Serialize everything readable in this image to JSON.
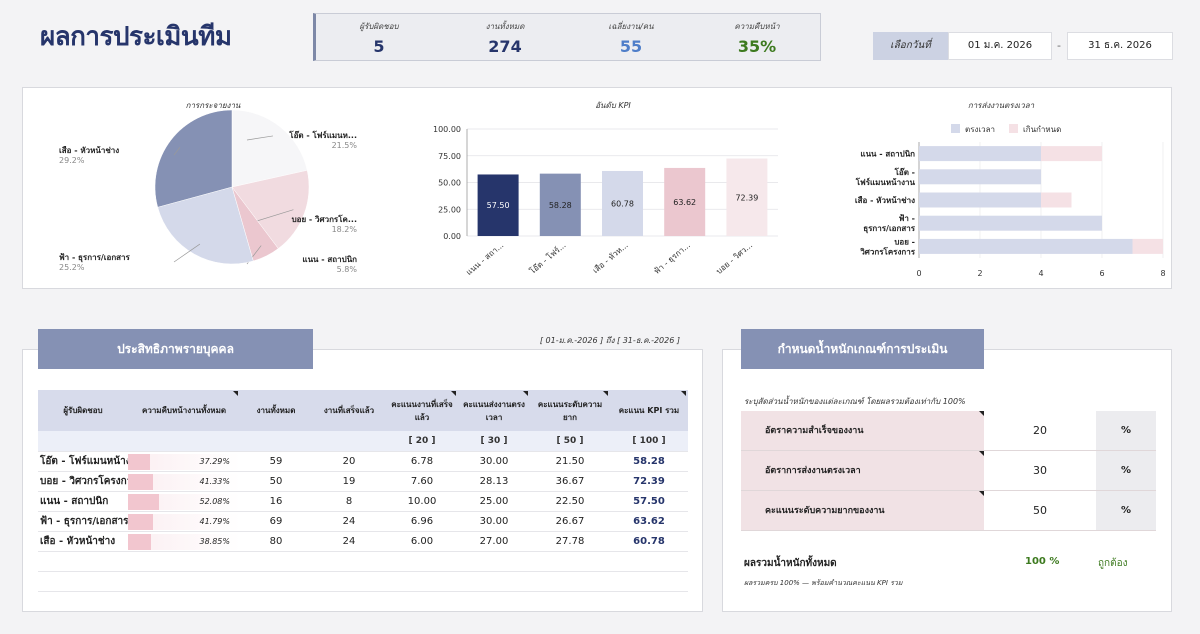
{
  "page_title": "ผลการประเมินทีม",
  "stats": [
    {
      "label": "ผู้รับผิดชอบ",
      "value": "5",
      "color": "#26356b"
    },
    {
      "label": "งานทั้งหมด",
      "value": "274",
      "color": "#26356b"
    },
    {
      "label": "เฉลี่ยงาน/คน",
      "value": "55",
      "color": "#4f7ec9"
    },
    {
      "label": "ความคืบหน้า",
      "value": "35%",
      "color": "#3d7a1f"
    }
  ],
  "date_filter": {
    "label": "เลือกวันที่",
    "start": "01 ม.ค. 2026",
    "sep": "-",
    "end": "31 ธ.ค. 2026"
  },
  "charts": {
    "pie": {
      "title": "การกระจายงาน",
      "slices": [
        {
          "label": "โอ๊ต - โฟร์แมนห...",
          "pct": "21.5%",
          "value": 21.5,
          "color": "#f6f6f8"
        },
        {
          "label": "บอย - วิศวกรโค...",
          "pct": "18.2%",
          "value": 18.2,
          "color": "#f1dbe0"
        },
        {
          "label": "แนน - สถาปนิก",
          "pct": "5.8%",
          "value": 5.8,
          "color": "#ebc7cf"
        },
        {
          "label": "ฟ้า - ธุรการ/เอกสาร",
          "pct": "25.2%",
          "value": 25.2,
          "color": "#d4d9ea"
        },
        {
          "label": "เสือ - หัวหน้าช่าง",
          "pct": "29.2%",
          "value": 29.2,
          "color": "#8591b4"
        }
      ]
    },
    "kpi": {
      "title": "อันดับ KPI",
      "yticks": [
        "100.00",
        "75.00",
        "50.00",
        "25.00",
        "0.00"
      ],
      "ylim": [
        0,
        100
      ],
      "bars": [
        {
          "label": "แนน - สถา...",
          "value": 57.5,
          "text": "57.50",
          "color": "#26356b",
          "text_color": "#ffffff"
        },
        {
          "label": "โอ๊ต - โฟร์...",
          "value": 58.28,
          "text": "58.28",
          "color": "#8591b4",
          "text_color": "#222222"
        },
        {
          "label": "เสือ - หัวห...",
          "value": 60.78,
          "text": "60.78",
          "color": "#d4d9ea",
          "text_color": "#222222"
        },
        {
          "label": "ฟ้า - ธุรกา...",
          "value": 63.62,
          "text": "63.62",
          "color": "#ebc7cf",
          "text_color": "#222222"
        },
        {
          "label": "บอย - วิศว...",
          "value": 72.39,
          "text": "72.39",
          "color": "#f6e8eb",
          "text_color": "#222222"
        }
      ]
    },
    "ontime": {
      "title": "การส่งงานตรงเวลา",
      "legend": [
        {
          "label": "ตรงเวลา",
          "color": "#d4d9ea"
        },
        {
          "label": "เกินกำหนด",
          "color": "#f5e1e5"
        }
      ],
      "xticks": [
        "0",
        "2",
        "4",
        "6",
        "8"
      ],
      "xlim": [
        0,
        8
      ],
      "rows": [
        {
          "label1": "แนน - สถาปนิก",
          "label2": "",
          "ontime": 4,
          "late": 2
        },
        {
          "label1": "โอ๊ต -",
          "label2": "โฟร์แมนหน้างาน",
          "ontime": 4,
          "late": 0
        },
        {
          "label1": "เสือ - หัวหน้าช่าง",
          "label2": "",
          "ontime": 4,
          "late": 1
        },
        {
          "label1": "ฟ้า -",
          "label2": "ธุรการ/เอกสาร",
          "ontime": 6,
          "late": 0
        },
        {
          "label1": "บอย -",
          "label2": "วิศวกรโครงการ",
          "ontime": 7,
          "late": 1
        }
      ]
    }
  },
  "performance": {
    "header": "ประสิทธิภาพรายบุคคล",
    "range": "[ 01-ม.ค.-2026 ] ถึง [ 31-ธ.ค.-2026 ]",
    "columns": [
      "ผู้รับผิดชอบ",
      "ความคืบหน้างานทั้งหมด",
      "งานทั้งหมด",
      "งานที่เสร็จแล้ว",
      "คะแนนงานที่เสร็จแล้ว",
      "คะแนนส่งงานตรงเวลา",
      "คะแนนระดับความยาก",
      "คะแนน KPI รวม"
    ],
    "weights": [
      "",
      "",
      "",
      "",
      "[ 20 ]",
      "[ 30 ]",
      "[ 50 ]",
      "[ 100 ]"
    ],
    "rows": [
      {
        "name": "โอ๊ต - โฟร์แมนหน้างาน",
        "progress": "37.29%",
        "progress_value": 37.29,
        "total": "59",
        "done": "20",
        "done_score": "6.78",
        "ontime_score": "30.00",
        "diff_score": "21.50",
        "kpi": "58.28"
      },
      {
        "name": "บอย - วิศวกรโครงการ",
        "progress": "41.33%",
        "progress_value": 41.33,
        "total": "50",
        "done": "19",
        "done_score": "7.60",
        "ontime_score": "28.13",
        "diff_score": "36.67",
        "kpi": "72.39"
      },
      {
        "name": "แนน - สถาปนิก",
        "progress": "52.08%",
        "progress_value": 52.08,
        "total": "16",
        "done": "8",
        "done_score": "10.00",
        "ontime_score": "25.00",
        "diff_score": "22.50",
        "kpi": "57.50"
      },
      {
        "name": "ฟ้า - ธุรการ/เอกสาร",
        "progress": "41.79%",
        "progress_value": 41.79,
        "total": "69",
        "done": "24",
        "done_score": "6.96",
        "ontime_score": "30.00",
        "diff_score": "26.67",
        "kpi": "63.62"
      },
      {
        "name": "เสือ - หัวหน้าช่าง",
        "progress": "38.85%",
        "progress_value": 38.85,
        "total": "80",
        "done": "24",
        "done_score": "6.00",
        "ontime_score": "27.00",
        "diff_score": "27.78",
        "kpi": "60.78"
      }
    ]
  },
  "weights_panel": {
    "header": "กำหนดน้ำหนักเกณฑ์การประเมิน",
    "desc": "ระบุสัดส่วนน้ำหนักของแต่ละเกณฑ์ โดยผลรวมต้องเท่ากับ 100%",
    "rows": [
      {
        "label": "อัตราความสำเร็จของงาน",
        "value": "20",
        "unit": "%"
      },
      {
        "label": "อัตราการส่งงานตรงเวลา",
        "value": "30",
        "unit": "%"
      },
      {
        "label": "คะแนนระดับความยากของงาน",
        "value": "50",
        "unit": "%"
      }
    ],
    "total_label": "ผลรวมน้ำหนักทั้งหมด",
    "total_value": "100 %",
    "total_status": "ถูกต้อง",
    "total_note": "ผลรวมครบ 100% — พร้อมคำนวณคะแนน KPI รวม"
  }
}
